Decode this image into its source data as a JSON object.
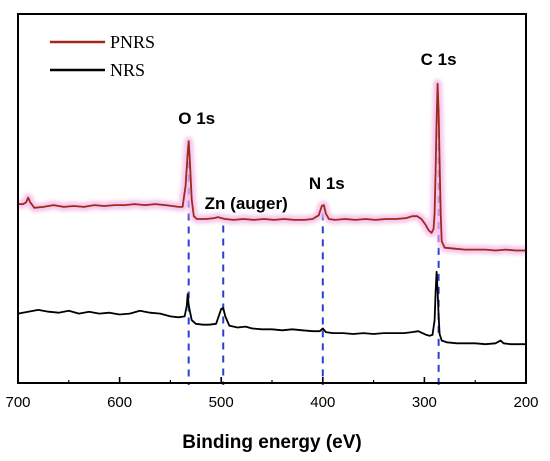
{
  "chart_data": {
    "type": "line",
    "xlabel": "Binding energy (eV)",
    "ylabel": "",
    "xlim": [
      700,
      200
    ],
    "x_reversed": true,
    "xticks": [
      700,
      600,
      500,
      400,
      300,
      200
    ],
    "yticks_shown": false,
    "grid": false,
    "legend_position": "top-left",
    "series": [
      {
        "name": "PNRS",
        "color": "#a0281e",
        "glow_color": "#f3b7e6",
        "points": [
          [
            700,
            205
          ],
          [
            695,
            205
          ],
          [
            692,
            203
          ],
          [
            690,
            198
          ],
          [
            688,
            203
          ],
          [
            684,
            209
          ],
          [
            675,
            208
          ],
          [
            665,
            206
          ],
          [
            655,
            208
          ],
          [
            645,
            207
          ],
          [
            635,
            208
          ],
          [
            625,
            206
          ],
          [
            615,
            207
          ],
          [
            605,
            206
          ],
          [
            595,
            206
          ],
          [
            585,
            205
          ],
          [
            575,
            206
          ],
          [
            565,
            205
          ],
          [
            555,
            206
          ],
          [
            548,
            207
          ],
          [
            542,
            208
          ],
          [
            538,
            208
          ],
          [
            535,
            185
          ],
          [
            533,
            150
          ],
          [
            532,
            137
          ],
          [
            531,
            155
          ],
          [
            529,
            200
          ],
          [
            527,
            218
          ],
          [
            524,
            221
          ],
          [
            515,
            221
          ],
          [
            507,
            220
          ],
          [
            503,
            219
          ],
          [
            500,
            220
          ],
          [
            496,
            221
          ],
          [
            488,
            222
          ],
          [
            478,
            221
          ],
          [
            468,
            222
          ],
          [
            458,
            221
          ],
          [
            448,
            222
          ],
          [
            438,
            221
          ],
          [
            428,
            222
          ],
          [
            418,
            222
          ],
          [
            410,
            221
          ],
          [
            404,
            217
          ],
          [
            401,
            207
          ],
          [
            399,
            206
          ],
          [
            397,
            215
          ],
          [
            394,
            221
          ],
          [
            388,
            222
          ],
          [
            378,
            221
          ],
          [
            368,
            222
          ],
          [
            358,
            221
          ],
          [
            348,
            222
          ],
          [
            338,
            221
          ],
          [
            328,
            221
          ],
          [
            318,
            220
          ],
          [
            312,
            218
          ],
          [
            307,
            218
          ],
          [
            303,
            221
          ],
          [
            299,
            227
          ],
          [
            296,
            233
          ],
          [
            293,
            236
          ],
          [
            291,
            232
          ],
          [
            290,
            215
          ],
          [
            289,
            170
          ],
          [
            288,
            115
          ],
          [
            287,
            75
          ],
          [
            286,
            104
          ],
          [
            285,
            160
          ],
          [
            284,
            215
          ],
          [
            283,
            245
          ],
          [
            280,
            252
          ],
          [
            270,
            253
          ],
          [
            260,
            254
          ],
          [
            250,
            254
          ],
          [
            240,
            254
          ],
          [
            230,
            255
          ],
          [
            220,
            254
          ],
          [
            210,
            255
          ],
          [
            200,
            255
          ]
        ]
      },
      {
        "name": "NRS",
        "color": "#000000",
        "glow_color": "",
        "points": [
          [
            700,
            323
          ],
          [
            690,
            321
          ],
          [
            680,
            319
          ],
          [
            670,
            321
          ],
          [
            660,
            322
          ],
          [
            650,
            320
          ],
          [
            640,
            323
          ],
          [
            630,
            321
          ],
          [
            620,
            323
          ],
          [
            610,
            322
          ],
          [
            600,
            324
          ],
          [
            590,
            323
          ],
          [
            580,
            320
          ],
          [
            570,
            322
          ],
          [
            560,
            323
          ],
          [
            550,
            326
          ],
          [
            542,
            327
          ],
          [
            536,
            326
          ],
          [
            534,
            315
          ],
          [
            533,
            302
          ],
          [
            532,
            314
          ],
          [
            529,
            330
          ],
          [
            525,
            334
          ],
          [
            518,
            335
          ],
          [
            512,
            335
          ],
          [
            505,
            334
          ],
          [
            500,
            318
          ],
          [
            498,
            317
          ],
          [
            496,
            326
          ],
          [
            492,
            336
          ],
          [
            484,
            338
          ],
          [
            476,
            337
          ],
          [
            470,
            339
          ],
          [
            460,
            340
          ],
          [
            450,
            340
          ],
          [
            440,
            341
          ],
          [
            430,
            340
          ],
          [
            420,
            341
          ],
          [
            410,
            342
          ],
          [
            403,
            342
          ],
          [
            400,
            339
          ],
          [
            397,
            343
          ],
          [
            390,
            344
          ],
          [
            380,
            344
          ],
          [
            370,
            345
          ],
          [
            360,
            344
          ],
          [
            350,
            345
          ],
          [
            340,
            344
          ],
          [
            330,
            344
          ],
          [
            320,
            344
          ],
          [
            312,
            343
          ],
          [
            306,
            342
          ],
          [
            302,
            344
          ],
          [
            298,
            346
          ],
          [
            295,
            347
          ],
          [
            292,
            346
          ],
          [
            290,
            330
          ],
          [
            289,
            300
          ],
          [
            288,
            278
          ],
          [
            287,
            298
          ],
          [
            286,
            325
          ],
          [
            285,
            345
          ],
          [
            283,
            352
          ],
          [
            278,
            354
          ],
          [
            268,
            355
          ],
          [
            258,
            355
          ],
          [
            250,
            355
          ],
          [
            240,
            356
          ],
          [
            230,
            355
          ],
          [
            225,
            352
          ],
          [
            222,
            355
          ],
          [
            215,
            356
          ],
          [
            208,
            356
          ],
          [
            200,
            356
          ]
        ]
      }
    ],
    "annotations": [
      {
        "text": "O 1s",
        "x": 532
      },
      {
        "text": "Zn (auger)",
        "x": 498
      },
      {
        "text": "N 1s",
        "x": 400
      },
      {
        "text": "C 1s",
        "x": 286
      }
    ],
    "reference_lines": [
      {
        "x": 532,
        "color": "#2b3fd6",
        "style": "dashed"
      },
      {
        "x": 498,
        "color": "#2b3fd6",
        "style": "dashed"
      },
      {
        "x": 400,
        "color": "#2b3fd6",
        "style": "dashed"
      },
      {
        "x": 286,
        "color": "#2b3fd6",
        "style": "dashed"
      }
    ]
  }
}
